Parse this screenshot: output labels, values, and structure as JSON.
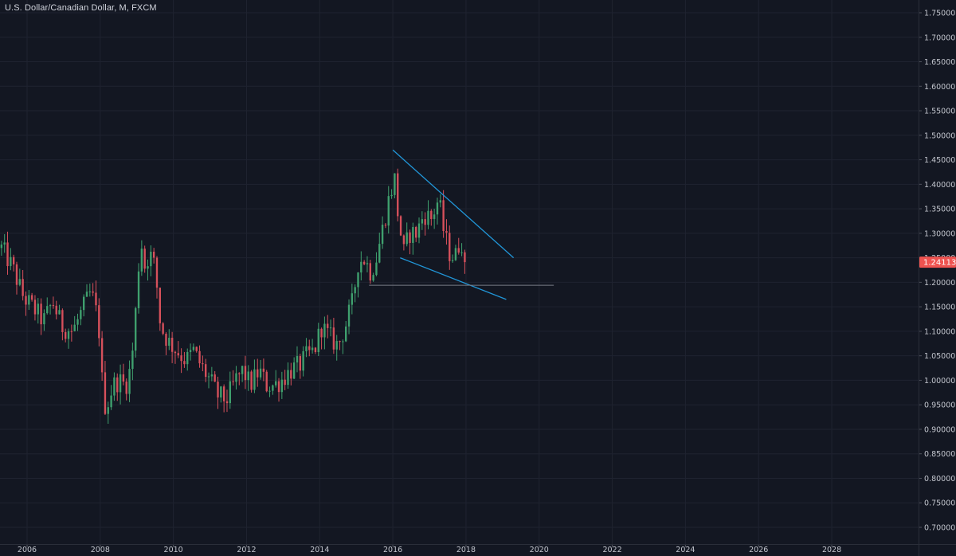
{
  "title": "U.S. Dollar/Canadian Dollar, M, FXCM",
  "colors": {
    "background": "#131722",
    "grid": "#1f2330",
    "axis_line": "#2a2e39",
    "up": "#3fa06e",
    "down": "#d6505b",
    "trendline": "#2196d8",
    "support_line": "#787b86",
    "price_label_bg": "#ef5350"
  },
  "chart_data": {
    "type": "candlestick",
    "symbol": "U.S. Dollar/Canadian Dollar",
    "timeframe": "M",
    "source": "FXCM",
    "ylim": [
      0.68,
      1.78
    ],
    "xlim": [
      2005.28,
      2030.05
    ],
    "y_tick_labels": [
      "1.75000",
      "1.70000",
      "1.65000",
      "1.60000",
      "1.55000",
      "1.50000",
      "1.45000",
      "1.40000",
      "1.35000",
      "1.30000",
      "1.25000",
      "1.20000",
      "1.15000",
      "1.10000",
      "1.05000",
      "1.00000",
      "0.95000",
      "0.90000",
      "0.85000",
      "0.80000",
      "0.75000",
      "0.70000"
    ],
    "x_tick_labels": [
      "2006",
      "2008",
      "2010",
      "2012",
      "2014",
      "2016",
      "2018",
      "2020",
      "2022",
      "2024",
      "2026",
      "2028"
    ],
    "last_price": "1.24113",
    "close_path": [
      [
        2005.3,
        1.27
      ],
      [
        2005.6,
        1.23
      ],
      [
        2005.9,
        1.17
      ],
      [
        2006.25,
        1.14
      ],
      [
        2006.45,
        1.12
      ],
      [
        2006.7,
        1.16
      ],
      [
        2006.95,
        1.11
      ],
      [
        2007.25,
        1.1
      ],
      [
        2007.55,
        1.15
      ],
      [
        2007.75,
        1.18
      ],
      [
        2007.95,
        1.12
      ],
      [
        2008.05,
        1.0
      ],
      [
        2008.15,
        0.94
      ],
      [
        2008.35,
        0.99
      ],
      [
        2008.5,
        1.0
      ],
      [
        2008.7,
        0.99
      ],
      [
        2008.85,
        1.03
      ],
      [
        2009.0,
        1.17
      ],
      [
        2009.1,
        1.3
      ],
      [
        2009.2,
        1.23
      ],
      [
        2009.35,
        1.26
      ],
      [
        2009.5,
        1.23
      ],
      [
        2009.65,
        1.11
      ],
      [
        2009.85,
        1.08
      ],
      [
        2010.1,
        1.06
      ],
      [
        2010.35,
        1.04
      ],
      [
        2010.55,
        1.06
      ],
      [
        2010.75,
        1.03
      ],
      [
        2011.0,
        1.0
      ],
      [
        2011.2,
        0.97
      ],
      [
        2011.45,
        0.96
      ],
      [
        2011.7,
        1.0
      ],
      [
        2011.9,
        1.02
      ],
      [
        2012.1,
        0.99
      ],
      [
        2012.35,
        1.02
      ],
      [
        2012.55,
        0.99
      ],
      [
        2012.75,
        0.99
      ],
      [
        2012.95,
        1.0
      ],
      [
        2013.2,
        1.02
      ],
      [
        2013.45,
        1.03
      ],
      [
        2013.65,
        1.05
      ],
      [
        2013.85,
        1.06
      ],
      [
        2014.05,
        1.11
      ],
      [
        2014.25,
        1.09
      ],
      [
        2014.5,
        1.07
      ],
      [
        2014.7,
        1.11
      ],
      [
        2014.9,
        1.16
      ],
      [
        2015.05,
        1.24
      ],
      [
        2015.2,
        1.25
      ],
      [
        2015.4,
        1.22
      ],
      [
        2015.55,
        1.25
      ],
      [
        2015.75,
        1.32
      ],
      [
        2015.92,
        1.38
      ],
      [
        2016.05,
        1.41
      ],
      [
        2016.15,
        1.33
      ],
      [
        2016.3,
        1.26
      ],
      [
        2016.45,
        1.3
      ],
      [
        2016.65,
        1.3
      ],
      [
        2016.85,
        1.34
      ],
      [
        2017.05,
        1.33
      ],
      [
        2017.25,
        1.37
      ],
      [
        2017.4,
        1.3
      ],
      [
        2017.55,
        1.26
      ],
      [
        2017.7,
        1.25
      ],
      [
        2017.85,
        1.29
      ],
      [
        2017.95,
        1.27
      ],
      [
        2018.0,
        1.241
      ]
    ],
    "annotations": [
      {
        "type": "trendline",
        "points": [
          [
            2016.0,
            1.47
          ],
          [
            2019.3,
            1.25
          ]
        ]
      },
      {
        "type": "trendline",
        "points": [
          [
            2016.2,
            1.25
          ],
          [
            2019.1,
            1.165
          ]
        ]
      },
      {
        "type": "horizontal_line",
        "price": 1.194,
        "from_x": 2015.35,
        "to_x": 2020.4
      }
    ]
  }
}
